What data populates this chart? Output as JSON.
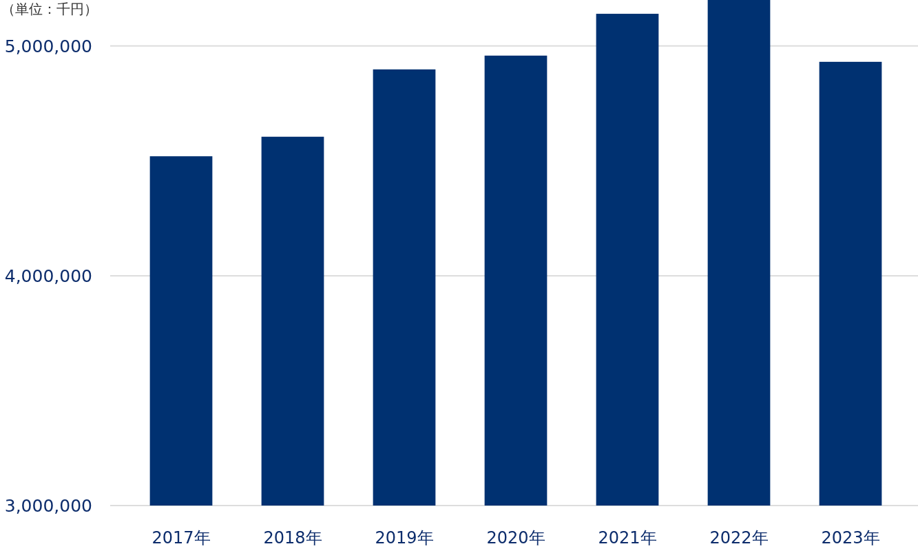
{
  "chart_data": {
    "type": "bar",
    "ylabel": "（単位：千円）",
    "categories": [
      "2017年",
      "2018年",
      "2019年",
      "2020年",
      "2021年",
      "2022年",
      "2023年"
    ],
    "values": [
      4520000,
      4605000,
      4898000,
      4958000,
      5140000,
      5200000,
      4931000
    ],
    "color": "#003171",
    "ylim": [
      3000000,
      5200000
    ],
    "yticks": [
      {
        "value": 3000000,
        "label": "3,000,000"
      },
      {
        "value": 4000000,
        "label": "4,000,000"
      },
      {
        "value": 5000000,
        "label": "5,000,000"
      }
    ],
    "grid": "y"
  }
}
